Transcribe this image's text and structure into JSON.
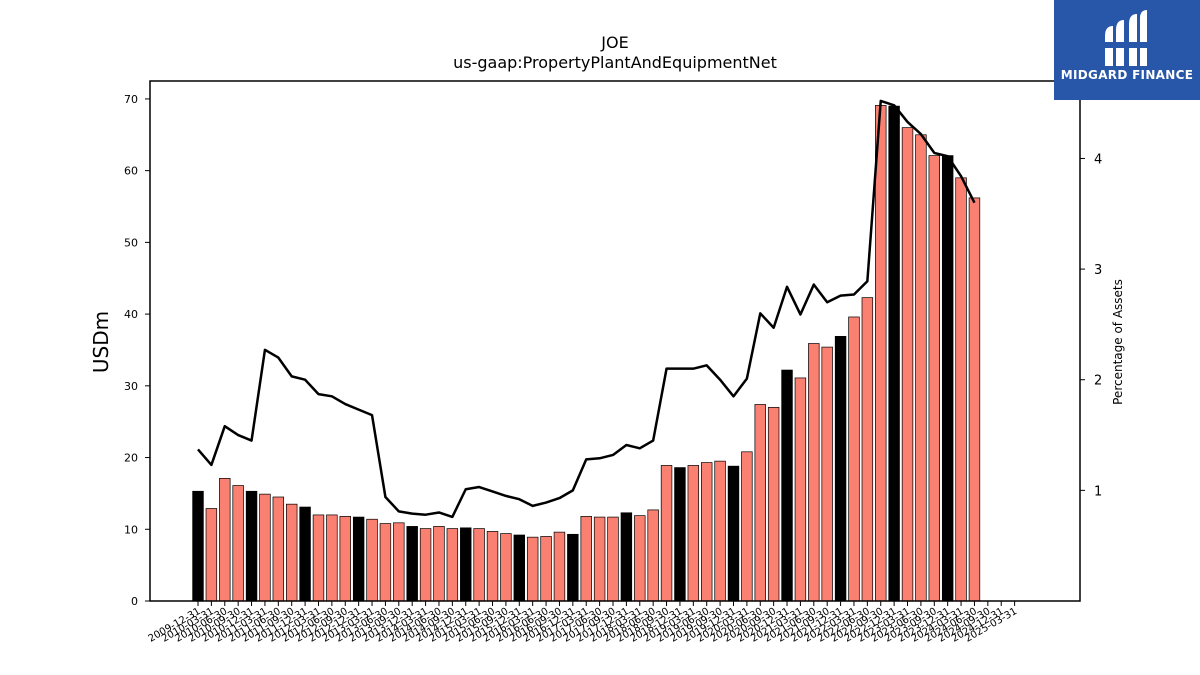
{
  "brand": {
    "name": "MIDGARD FINANCE",
    "logo_icon": "midgard-logo-icon",
    "background": "#2856a8"
  },
  "chart_data": {
    "type": "bar",
    "title": "JOE",
    "subtitle": "us-gaap:PropertyPlantAndEquipmentNet",
    "ylabel": "USDm",
    "y2label": "Percentage of Assets",
    "ylim": [
      0,
      72.5
    ],
    "y2lim": [
      0,
      4.7
    ],
    "yticks": [
      0,
      10,
      20,
      30,
      40,
      50,
      60,
      70
    ],
    "y2ticks": [
      1,
      2,
      3,
      4
    ],
    "colors": {
      "annual": "#000000",
      "quarterly": "#fa8072",
      "line": "#000000"
    },
    "categories": [
      "2009-12-31",
      "2010-03-31",
      "2010-06-30",
      "2010-09-30",
      "2010-12-31",
      "2011-03-31",
      "2011-06-30",
      "2011-09-30",
      "2011-12-31",
      "2012-03-31",
      "2012-06-30",
      "2012-09-30",
      "2012-12-31",
      "2013-03-31",
      "2013-06-30",
      "2013-09-30",
      "2013-12-31",
      "2014-03-31",
      "2014-06-30",
      "2014-09-30",
      "2014-12-31",
      "2015-03-31",
      "2015-06-30",
      "2015-09-30",
      "2015-12-31",
      "2016-03-31",
      "2016-06-30",
      "2016-09-30",
      "2016-12-31",
      "2017-03-31",
      "2017-06-30",
      "2017-09-30",
      "2017-12-31",
      "2018-03-31",
      "2018-06-30",
      "2018-09-30",
      "2018-12-31",
      "2019-03-31",
      "2019-06-30",
      "2019-09-30",
      "2019-12-31",
      "2020-03-31",
      "2020-06-30",
      "2020-09-30",
      "2020-12-31",
      "2021-03-31",
      "2021-06-30",
      "2021-09-30",
      "2021-12-31",
      "2022-03-31",
      "2022-06-30",
      "2022-09-30",
      "2022-12-31",
      "2023-03-31",
      "2023-06-30",
      "2023-09-30",
      "2023-12-31",
      "2024-03-31",
      "2024-06-30",
      "2024-09-30",
      "2024-12-31",
      "2025-03-31"
    ],
    "annual_flags": [
      1,
      0,
      0,
      0,
      1,
      0,
      0,
      0,
      1,
      0,
      0,
      0,
      1,
      0,
      0,
      0,
      1,
      0,
      0,
      0,
      1,
      0,
      0,
      0,
      1,
      0,
      0,
      0,
      1,
      0,
      0,
      0,
      1,
      0,
      0,
      0,
      1,
      0,
      0,
      0,
      1,
      0,
      0,
      0,
      1,
      0,
      0,
      0,
      1,
      0,
      0,
      0,
      1,
      0,
      0,
      0,
      1,
      0,
      0,
      0,
      1,
      0
    ],
    "tick_labels": [
      "2009-12-31",
      "2010-03-31",
      "2010-06-30",
      "2010-09-30",
      "2010-12-31",
      "2011-03-31",
      "2011-06-30",
      "2011-09-30",
      "2011-12-31",
      "2012-03-31",
      "2012-06-30",
      "2012-09-30",
      "2012-12-31",
      "2013-03-31",
      "2013-06-30",
      "2013-09-30",
      "2013-12-31",
      "2014-03-31",
      "2014-06-30",
      "2014-09-30",
      "2014-12-31",
      "2015-03-31",
      "2015-06-30",
      "2015-09-30",
      "2015-12-31",
      "2016-03-31",
      "2016-06-30",
      "2016-09-30",
      "2016-12-31",
      "2017-03-31",
      "2017-06-30",
      "2017-09-30",
      "2017-12-31",
      "2018-03-31",
      "2018-06-30",
      "2018-09-30",
      "2018-12-31",
      "2019-03-31",
      "2019-06-30",
      "2019-09-30",
      "2019-12-31",
      "2020-03-31",
      "2020-06-30",
      "2020-09-30",
      "2020-12-31",
      "2021-03-31",
      "2021-06-30",
      "2021-09-30",
      "2021-12-31",
      "2022-03-31",
      "2022-06-30",
      "2022-09-30",
      "2022-12-31",
      "2023-03-31",
      "2023-06-30",
      "2023-09-30",
      "2023-12-31",
      "2024-03-31",
      "2024-06-30",
      "2024-09-30",
      "2024-12-31",
      "2025-03-31"
    ],
    "series": [
      {
        "name": "USDm",
        "kind": "bar",
        "values": [
          15.3,
          12.9,
          17.1,
          16.1,
          15.3,
          14.9,
          14.5,
          13.5,
          13.1,
          12.0,
          12.0,
          11.8,
          11.7,
          11.4,
          10.8,
          10.9,
          10.4,
          10.1,
          10.4,
          10.1,
          10.2,
          10.1,
          9.7,
          9.4,
          9.2,
          8.9,
          9.0,
          9.6,
          9.3,
          11.8,
          11.7,
          11.7,
          12.3,
          11.9,
          12.7,
          18.9,
          18.6,
          18.9,
          19.3,
          19.5,
          18.8,
          20.8,
          27.4,
          27.0,
          32.2,
          31.1,
          35.9,
          35.4,
          36.9,
          39.6,
          42.3,
          69.1,
          69.0,
          66.0,
          65.0,
          62.1,
          62.1,
          59.0,
          56.2,
          null,
          null,
          null
        ]
      },
      {
        "name": "Percentage of Assets",
        "kind": "line",
        "values": [
          1.37,
          1.23,
          1.58,
          1.5,
          1.45,
          2.27,
          2.2,
          2.03,
          2.0,
          1.87,
          1.85,
          1.78,
          1.73,
          1.68,
          0.94,
          0.81,
          0.79,
          0.78,
          0.8,
          0.76,
          1.01,
          1.03,
          0.99,
          0.95,
          0.92,
          0.86,
          0.89,
          0.93,
          1.0,
          1.28,
          1.29,
          1.32,
          1.41,
          1.38,
          1.45,
          2.1,
          2.1,
          2.1,
          2.13,
          2.0,
          1.85,
          2.01,
          2.6,
          2.47,
          2.84,
          2.59,
          2.86,
          2.7,
          2.76,
          2.77,
          2.89,
          4.52,
          4.48,
          4.33,
          4.22,
          4.05,
          4.02,
          3.84,
          3.6,
          null,
          null,
          null
        ]
      }
    ]
  }
}
